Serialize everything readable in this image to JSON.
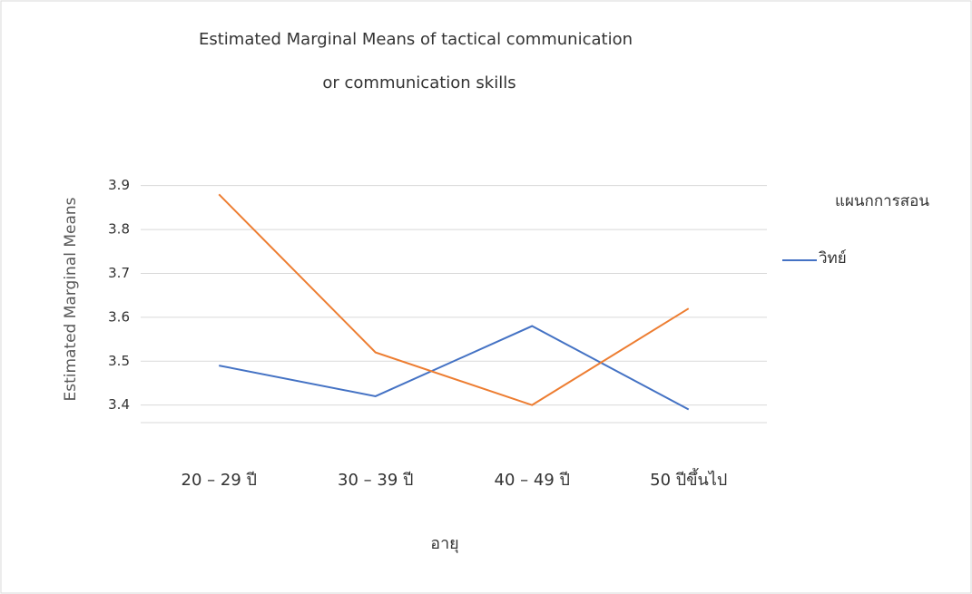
{
  "chart_data": {
    "type": "line",
    "title": [
      "Estimated Marginal Means of tactical communication",
      "or communication skills"
    ],
    "x_label": "อายุ",
    "y_label": "Estimated Marginal Means",
    "categories": [
      "20 – 29 ปี",
      "30 – 39 ปี",
      "40 – 49 ปี",
      "50 ปีขึ้นไป"
    ],
    "series": [
      {
        "name": "วิทย์",
        "color": "#4472c4",
        "values": [
          3.49,
          3.42,
          3.58,
          3.39
        ]
      },
      {
        "name": null,
        "color": "#ed7d31",
        "values": [
          3.88,
          3.52,
          3.4,
          3.62
        ]
      }
    ],
    "ylim": [
      3.36,
      3.92
    ],
    "yticks": [
      3.4,
      3.5,
      3.6,
      3.7,
      3.8,
      3.9
    ],
    "grid": true,
    "legend": {
      "title": "แผนกการสอน",
      "position": "right"
    }
  }
}
